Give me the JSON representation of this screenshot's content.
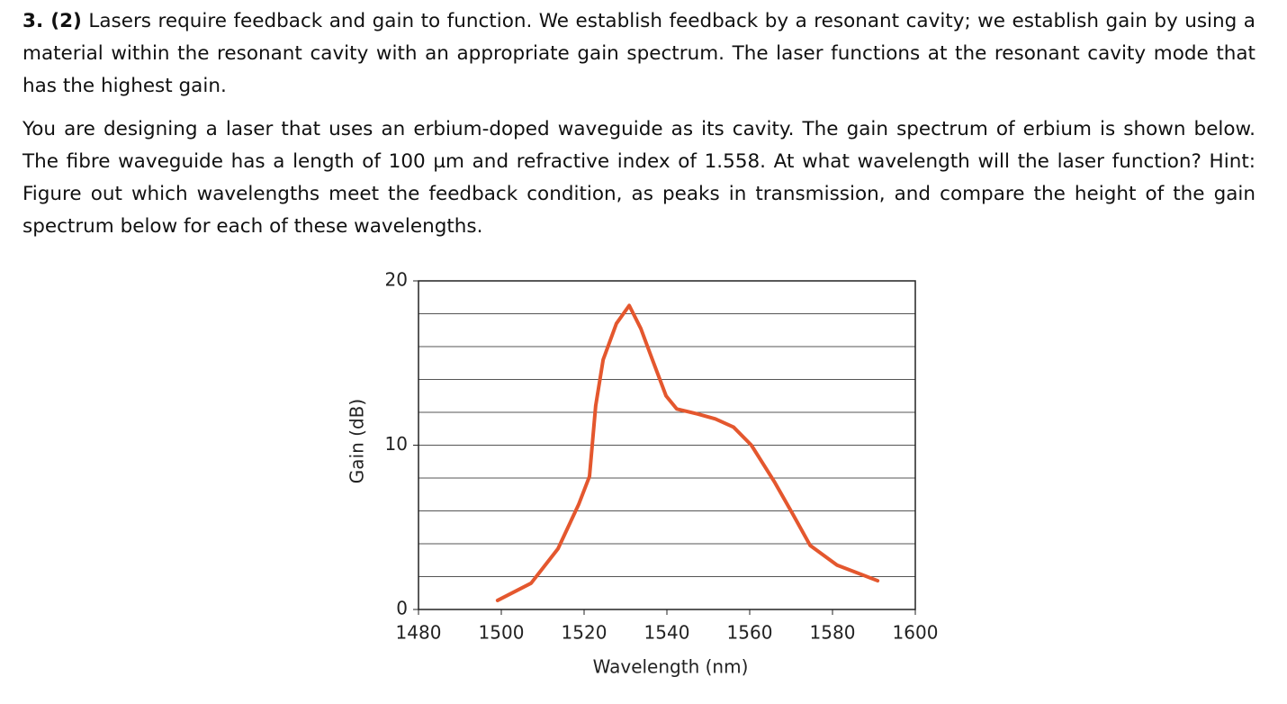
{
  "question": {
    "number": "3. (2)",
    "text": "Lasers require feedback and gain to function. We establish feedback by a resonant cavity; we establish gain by using a material within the resonant cavity with an appropriate gain spectrum. The laser functions at the resonant cavity mode that has the highest gain."
  },
  "paragraph_2": "You are designing a laser that uses an erbium-doped waveguide as its cavity. The gain spectrum of erbium is shown below. The fibre waveguide has a length of 100 µm and refractive index of 1.558. At what wavelength will the laser function? Hint: Figure out which wavelengths meet the feedback condition, as peaks in transmission, and compare the height of the gain spectrum below for each of these wavelengths.",
  "chart_data": {
    "type": "line",
    "x_label": "Wavelength (nm)",
    "y_label": "Gain (dB)",
    "x": [
      1499.1,
      1507.2,
      1513.7,
      1518.7,
      1521.3,
      1522.8,
      1524.6,
      1527.8,
      1530.9,
      1533.7,
      1536.5,
      1539.8,
      1542.4,
      1547.4,
      1551.7,
      1556.1,
      1560.4,
      1565.9,
      1570.2,
      1574.6,
      1581.1,
      1590.9
    ],
    "values": [
      0.55,
      1.6,
      3.7,
      6.4,
      8.1,
      12.4,
      15.2,
      17.4,
      18.5,
      17.1,
      15.2,
      13.0,
      12.2,
      11.9,
      11.6,
      11.1,
      10.0,
      7.8,
      5.9,
      3.9,
      2.7,
      1.75
    ],
    "color": "#e4572e",
    "xlim": [
      1480,
      1600
    ],
    "xticks": [
      1480,
      1500,
      1520,
      1540,
      1560,
      1580,
      1600
    ],
    "ylim": [
      0,
      20
    ],
    "yticks": [
      0,
      10,
      20
    ],
    "y_gridlines": [
      2,
      4,
      6,
      8,
      10,
      12,
      14,
      16,
      18
    ],
    "grid": true
  }
}
